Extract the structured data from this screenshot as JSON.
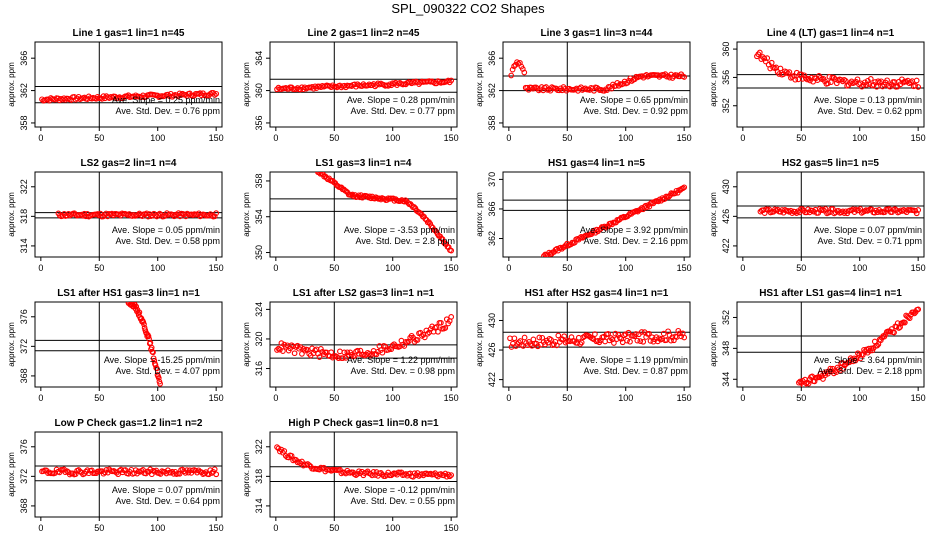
{
  "page": {
    "title": "SPL_090322  CO2 Shapes"
  },
  "chart_data": [
    {
      "type": "scatter",
      "title": "Line 1 gas=1 lin=1 n=45",
      "ylabel": "approx. ppm",
      "xlim": [
        -5,
        155
      ],
      "ylim": [
        357.5,
        368
      ],
      "xticks": [
        0,
        50,
        100,
        150
      ],
      "yticks": [
        358,
        362,
        366
      ],
      "vline": 50,
      "hlines": [
        360.5,
        362.5
      ],
      "slope_text": "Ave. Slope = 0.25 ppm/min",
      "std_text": "Ave. Std. Dev. = 0.76 ppm",
      "points": {
        "x_start": 1,
        "x_end": 150,
        "count": 120,
        "shape": "linear",
        "y_start": 360.9,
        "y_end": 361.6,
        "noise": 0.2
      }
    },
    {
      "type": "scatter",
      "title": "Line 2 gas=1 lin=2 n=45",
      "ylabel": "approx. ppm",
      "xlim": [
        -5,
        155
      ],
      "ylim": [
        355.5,
        366
      ],
      "xticks": [
        0,
        50,
        100,
        150
      ],
      "yticks": [
        356,
        360,
        364
      ],
      "vline": 50,
      "hlines": [
        359.8,
        361.4
      ],
      "slope_text": "Ave. Slope = 0.28 ppm/min",
      "std_text": "Ave. Std. Dev. = 0.77 ppm",
      "points": {
        "x_start": 1,
        "x_end": 150,
        "count": 120,
        "shape": "linear",
        "y_start": 360.2,
        "y_end": 361.1,
        "noise": 0.2
      }
    },
    {
      "type": "scatter",
      "title": "Line 3 gas=1 lin=3 n=44",
      "ylabel": "approx. ppm",
      "xlim": [
        -5,
        155
      ],
      "ylim": [
        357.5,
        368
      ],
      "xticks": [
        0,
        50,
        100,
        150
      ],
      "yticks": [
        358,
        362,
        366
      ],
      "vline": 50,
      "hlines": [
        362.0,
        363.8
      ],
      "slope_text": "Ave. Slope = 0.65 ppm/min",
      "std_text": "Ave. Std. Dev. = 0.92 ppm",
      "points": {
        "x_start": 2,
        "x_end": 150,
        "count": 120,
        "shape": "bump",
        "y_start": 364.0,
        "y_end": 363.8,
        "noise": 0.25
      }
    },
    {
      "type": "scatter",
      "title": "Line 4 (LT) gas=1 lin=4 n=1",
      "ylabel": "approx. ppm",
      "xlim": [
        -5,
        155
      ],
      "ylim": [
        349,
        361
      ],
      "xticks": [
        0,
        50,
        100,
        150
      ],
      "yticks": [
        352,
        356,
        360
      ],
      "vline": 50,
      "hlines": [
        354.5,
        356.4
      ],
      "slope_text": "Ave. Slope = 0.13 ppm/min",
      "std_text": "Ave. Std. Dev. = 0.62 ppm",
      "points": {
        "x_start": 12,
        "x_end": 150,
        "count": 110,
        "shape": "decay",
        "y_start": 359.5,
        "y_end": 355.2,
        "noise": 0.6
      }
    },
    {
      "type": "scatter",
      "title": "LS2 gas=2 lin=1 n=4",
      "ylabel": "approx. ppm",
      "xlim": [
        -5,
        155
      ],
      "ylim": [
        312.5,
        324
      ],
      "xticks": [
        0,
        50,
        100,
        150
      ],
      "yticks": [
        314,
        318,
        322
      ],
      "vline": 50,
      "hlines": [
        317.8,
        318.5
      ],
      "slope_text": "Ave. Slope = 0.05 ppm/min",
      "std_text": "Ave. Std. Dev. = 0.58 ppm",
      "points": {
        "x_start": 15,
        "x_end": 150,
        "count": 110,
        "shape": "flat",
        "y_start": 318.2,
        "y_end": 318.2,
        "noise": 0.25
      }
    },
    {
      "type": "scatter",
      "title": "LS1 gas=3 lin=1 n=4",
      "ylabel": "approx. ppm",
      "xlim": [
        -5,
        155
      ],
      "ylim": [
        349.5,
        359
      ],
      "xticks": [
        0,
        50,
        100,
        150
      ],
      "yticks": [
        350,
        354,
        358
      ],
      "vline": 50,
      "hlines": [
        354.6,
        356.0
      ],
      "slope_text": "Ave. Slope = -3.53 ppm/min",
      "std_text": "Ave. Std. Dev. = 2.8 ppm",
      "points": {
        "x_start": 35,
        "x_end": 150,
        "count": 110,
        "shape": "sdrop",
        "y_start": 359.2,
        "y_end": 350.1,
        "noise": 0.15
      }
    },
    {
      "type": "scatter",
      "title": "HS1 gas=4 lin=1 n=5",
      "ylabel": "approx. ppm",
      "xlim": [
        -5,
        155
      ],
      "ylim": [
        359.5,
        371
      ],
      "xticks": [
        0,
        50,
        100,
        150
      ],
      "yticks": [
        362,
        366,
        370
      ],
      "vline": 50,
      "hlines": [
        365.8,
        367.2
      ],
      "slope_text": "Ave. Slope = 3.92 ppm/min",
      "std_text": "Ave. Std. Dev. = 2.16 ppm",
      "points": {
        "x_start": 30,
        "x_end": 150,
        "count": 110,
        "shape": "linear",
        "y_start": 359.6,
        "y_end": 368.8,
        "noise": 0.2
      }
    },
    {
      "type": "scatter",
      "title": "HS2 gas=5 lin=1 n=5",
      "ylabel": "approx. ppm",
      "xlim": [
        -5,
        155
      ],
      "ylim": [
        420.5,
        432
      ],
      "xticks": [
        0,
        50,
        100,
        150
      ],
      "yticks": [
        422,
        426,
        430
      ],
      "vline": 50,
      "hlines": [
        425.8,
        427.4
      ],
      "slope_text": "Ave. Slope = 0.07 ppm/min",
      "std_text": "Ave. Std. Dev. = 0.71 ppm",
      "points": {
        "x_start": 15,
        "x_end": 150,
        "count": 110,
        "shape": "flat",
        "y_start": 426.7,
        "y_end": 426.7,
        "noise": 0.3
      }
    },
    {
      "type": "scatter",
      "title": "LS1 after HS1 gas=3 lin=1 n=1",
      "ylabel": "approx. ppm",
      "xlim": [
        -5,
        155
      ],
      "ylim": [
        366.5,
        378
      ],
      "xticks": [
        0,
        50,
        100,
        150
      ],
      "yticks": [
        368,
        372,
        376
      ],
      "vline": 50,
      "hlines": [
        371.4,
        372.8
      ],
      "slope_text": "Ave. Slope = -15.25 ppm/min",
      "std_text": "Ave. Std. Dev. = 4.07 ppm",
      "points": {
        "x_start": 75,
        "x_end": 102,
        "count": 50,
        "shape": "curvedrop",
        "y_start": 378.0,
        "y_end": 366.8,
        "noise": 0.3
      }
    },
    {
      "type": "scatter",
      "title": "LS1 after LS2 gas=3 lin=1 n=1",
      "ylabel": "approx. ppm",
      "xlim": [
        -5,
        155
      ],
      "ylim": [
        313.5,
        325
      ],
      "xticks": [
        0,
        50,
        100,
        150
      ],
      "yticks": [
        316,
        320,
        324
      ],
      "vline": 50,
      "hlines": [
        317.4,
        319.2
      ],
      "slope_text": "Ave. Slope = 1.22 ppm/min",
      "std_text": "Ave. Std. Dev. = 0.98 ppm",
      "points": {
        "x_start": 1,
        "x_end": 150,
        "count": 120,
        "shape": "uprise",
        "y_start": 318.4,
        "y_end": 322.5,
        "noise": 0.6
      }
    },
    {
      "type": "scatter",
      "title": "HS1 after HS2 gas=4 lin=1 n=1",
      "ylabel": "approx. ppm",
      "xlim": [
        -5,
        155
      ],
      "ylim": [
        421,
        432.5
      ],
      "xticks": [
        0,
        50,
        100,
        150
      ],
      "yticks": [
        422,
        426,
        430
      ],
      "vline": 50,
      "hlines": [
        426.4,
        428.4
      ],
      "slope_text": "Ave. Slope = 1.19 ppm/min",
      "std_text": "Ave. Std. Dev. = 0.87 ppm",
      "points": {
        "x_start": 1,
        "x_end": 150,
        "count": 120,
        "shape": "linear",
        "y_start": 427.0,
        "y_end": 428.0,
        "noise": 0.7
      }
    },
    {
      "type": "scatter",
      "title": "HS1 after LS1 gas=4 lin=1 n=1",
      "ylabel": "approx. ppm",
      "xlim": [
        -5,
        155
      ],
      "ylim": [
        343,
        354
      ],
      "xticks": [
        0,
        50,
        100,
        150
      ],
      "yticks": [
        344,
        348,
        352
      ],
      "vline": 50,
      "hlines": [
        347.5,
        349.6
      ],
      "slope_text": "Ave. Slope = 3.64 ppm/min",
      "std_text": "Ave. Std. Dev. = 2.18 ppm",
      "points": {
        "x_start": 48,
        "x_end": 150,
        "count": 100,
        "shape": "rise",
        "y_start": 343.3,
        "y_end": 353.5,
        "noise": 0.5
      }
    },
    {
      "type": "scatter",
      "title": "Low P Check gas=1.2 lin=1 n=2",
      "ylabel": "approx. ppm",
      "xlim": [
        -5,
        155
      ],
      "ylim": [
        366.5,
        378
      ],
      "xticks": [
        0,
        50,
        100,
        150
      ],
      "yticks": [
        368,
        372,
        376
      ],
      "vline": 50,
      "hlines": [
        371.4,
        373.4
      ],
      "slope_text": "Ave. Slope = 0.07 ppm/min",
      "std_text": "Ave. Std. Dev. = 0.64 ppm",
      "points": {
        "x_start": 1,
        "x_end": 150,
        "count": 120,
        "shape": "flat",
        "y_start": 372.6,
        "y_end": 372.6,
        "noise": 0.35
      }
    },
    {
      "type": "scatter",
      "title": "High P Check gas=1 lin=0.8 n=1",
      "ylabel": "approx. ppm",
      "xlim": [
        -5,
        155
      ],
      "ylim": [
        312.5,
        324
      ],
      "xticks": [
        0,
        50,
        100,
        150
      ],
      "yticks": [
        314,
        318,
        322
      ],
      "vline": 50,
      "hlines": [
        317.3,
        319.3
      ],
      "slope_text": "Ave. Slope = -0.12 ppm/min",
      "std_text": "Ave. Std. Dev. = 0.55 ppm",
      "points": {
        "x_start": 1,
        "x_end": 150,
        "count": 120,
        "shape": "decay",
        "y_start": 322.0,
        "y_end": 318.2,
        "noise": 0.3
      }
    }
  ]
}
